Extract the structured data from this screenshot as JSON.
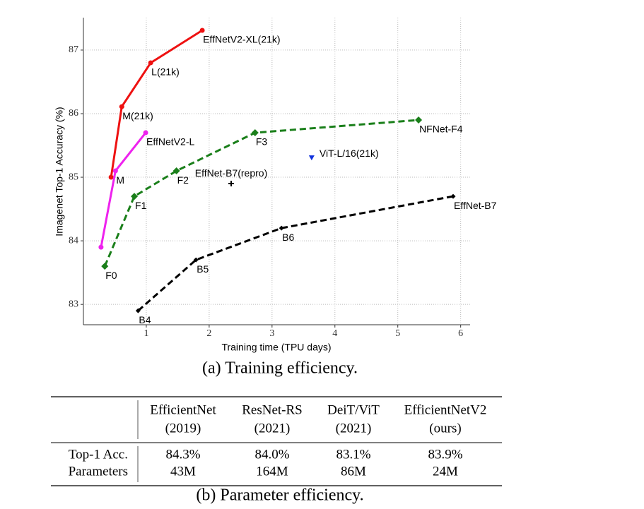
{
  "chart_data": {
    "type": "line",
    "xlabel": "Training time (TPU days)",
    "ylabel": "Imagenet Top-1 Accuracy (%)",
    "xlim": [
      0,
      6.15
    ],
    "ylim": [
      82.68,
      87.51
    ],
    "xticks": [
      1,
      2,
      3,
      4,
      5,
      6
    ],
    "yticks": [
      83,
      84,
      85,
      86,
      87
    ],
    "grid": true,
    "series": [
      {
        "color": "#ee1111",
        "marker": "circle",
        "dashed": false,
        "x": [
          0.44,
          0.61,
          1.07,
          1.89
        ],
        "values": [
          85.0,
          86.11,
          86.8,
          87.31
        ],
        "labels": [
          null,
          "M(21k)",
          "L(21k)",
          "EffNetV2-XL(21k)"
        ]
      },
      {
        "color": "#ee22ee",
        "marker": "circle",
        "dashed": false,
        "x": [
          0.28,
          0.51,
          0.99
        ],
        "values": [
          83.9,
          85.1,
          85.7
        ],
        "labels": [
          null,
          "M",
          "EffNetV2-L"
        ]
      },
      {
        "color": "#1a7f1a",
        "marker": "diamond",
        "dashed": true,
        "x": [
          0.34,
          0.81,
          1.48,
          2.73,
          5.33
        ],
        "values": [
          83.6,
          84.7,
          85.1,
          85.7,
          85.9
        ],
        "labels": [
          "F0",
          "F1",
          "F2",
          "F3",
          "NFNet-F4"
        ]
      },
      {
        "color": "#000000",
        "marker": "smalldiamond",
        "dashed": true,
        "x": [
          0.87,
          1.79,
          3.15,
          5.88
        ],
        "values": [
          82.9,
          83.7,
          84.2,
          84.7
        ],
        "labels": [
          "B4",
          "B5",
          "B6",
          "EffNet-B7"
        ]
      },
      {
        "color": "#1133dd",
        "marker": "triangle-down",
        "line": false,
        "x": [
          3.63
        ],
        "values": [
          85.31
        ],
        "labels": [
          "ViT-L/16(21k)"
        ]
      },
      {
        "color": "#000000",
        "marker": "plus",
        "line": false,
        "x": [
          2.35
        ],
        "values": [
          84.9
        ],
        "labels": [
          "EffNet-B7(repro)"
        ]
      }
    ]
  },
  "caption_a": "(a) Training efficiency.",
  "table": {
    "columns": [
      [
        "EfficientNet",
        "(2019)"
      ],
      [
        "ResNet-RS",
        "(2021)"
      ],
      [
        "DeiT/ViT",
        "(2021)"
      ],
      [
        "EfficientNetV2",
        "(ours)"
      ]
    ],
    "rows": [
      [
        "Top-1 Acc.",
        "84.3%",
        "84.0%",
        "83.1%",
        "83.9%"
      ],
      [
        "Parameters",
        "43M",
        "164M",
        "86M",
        "24M"
      ]
    ]
  },
  "caption_b": "(b) Parameter efficiency."
}
